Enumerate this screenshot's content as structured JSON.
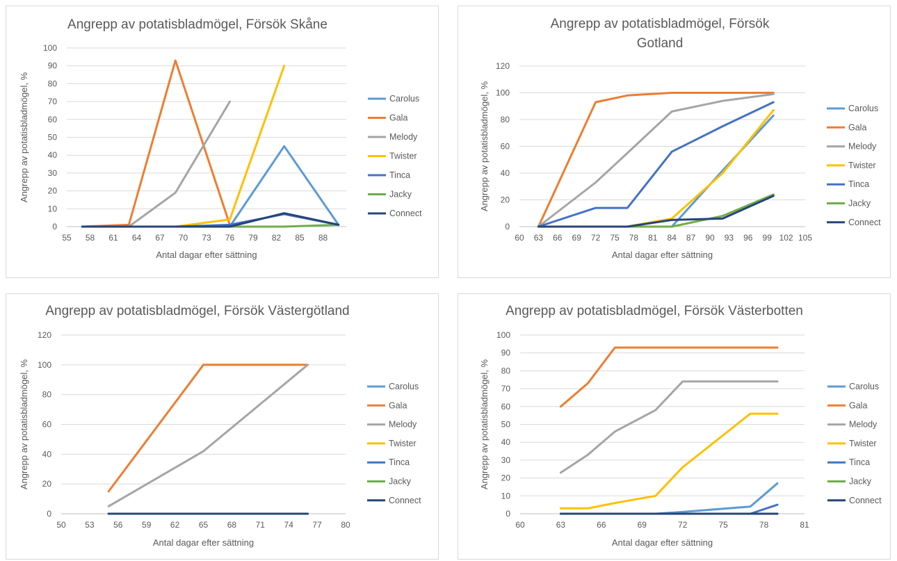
{
  "colors": {
    "Carolus": "#5b9bd5",
    "Gala": "#ed7d31",
    "Melody": "#a5a5a5",
    "Twister": "#ffc000",
    "Tinca": "#4472c4",
    "Jacky": "#70ad47",
    "Connect": "#264478"
  },
  "chart_data": [
    {
      "type": "line",
      "title_lines": [
        "Angrepp av potatisbladmögel, Försök Skåne"
      ],
      "xlabel": "Antal dagar efter sättning",
      "ylabel": "Angrepp av potatisbladmögel, %",
      "xlim": [
        55,
        91
      ],
      "xticks": [
        "55",
        "58",
        "61",
        "64",
        "67",
        "70",
        "73",
        "76",
        "79",
        "82",
        "85",
        "88"
      ],
      "ylim": [
        0,
        100
      ],
      "yticks": [
        "0",
        "10",
        "20",
        "30",
        "40",
        "50",
        "60",
        "70",
        "80",
        "90",
        "100"
      ],
      "grid": true,
      "legend": "right",
      "series": [
        {
          "name": "Carolus",
          "x": [
            57,
            63,
            69,
            76,
            83,
            90
          ],
          "y": [
            0,
            0,
            0,
            0,
            45,
            1
          ]
        },
        {
          "name": "Gala",
          "x": [
            57,
            63,
            69,
            76
          ],
          "y": [
            0,
            1,
            93,
            1
          ]
        },
        {
          "name": "Melody",
          "x": [
            57,
            63,
            69,
            76
          ],
          "y": [
            0,
            0,
            19,
            70
          ]
        },
        {
          "name": "Twister",
          "x": [
            57,
            63,
            69,
            76,
            83
          ],
          "y": [
            0,
            0,
            0,
            4,
            90
          ]
        },
        {
          "name": "Tinca",
          "x": [
            57,
            63,
            69,
            76,
            83,
            90
          ],
          "y": [
            0,
            0,
            0,
            1,
            7,
            1
          ]
        },
        {
          "name": "Jacky",
          "x": [
            57,
            63,
            69,
            76,
            83,
            90
          ],
          "y": [
            0,
            0,
            0,
            0,
            0,
            1
          ]
        },
        {
          "name": "Connect",
          "x": [
            57,
            63,
            69,
            76,
            83,
            90
          ],
          "y": [
            0,
            0,
            0,
            0,
            7.5,
            1
          ]
        }
      ]
    },
    {
      "type": "line",
      "title_lines": [
        "Angrepp av potatisbladmögel, Försök",
        "Gotland"
      ],
      "xlabel": "Antal dagar efter sättning",
      "ylabel": "Angrepp av potatisbladmögel, %",
      "xlim": [
        60,
        105
      ],
      "xticks": [
        "60",
        "63",
        "66",
        "69",
        "72",
        "75",
        "78",
        "81",
        "84",
        "87",
        "90",
        "93",
        "96",
        "99",
        "102",
        "105"
      ],
      "ylim": [
        0,
        120
      ],
      "yticks": [
        "0",
        "20",
        "40",
        "60",
        "80",
        "100",
        "120"
      ],
      "grid": true,
      "legend": "right",
      "series": [
        {
          "name": "Carolus",
          "x": [
            63,
            72,
            77,
            84,
            92,
            100
          ],
          "y": [
            0,
            0,
            0,
            0,
            42,
            83
          ]
        },
        {
          "name": "Gala",
          "x": [
            63,
            72,
            77,
            84,
            92,
            100
          ],
          "y": [
            0,
            93,
            98,
            100,
            100,
            100
          ]
        },
        {
          "name": "Melody",
          "x": [
            63,
            72,
            77,
            84,
            92,
            100
          ],
          "y": [
            0,
            33,
            55,
            86,
            94,
            99
          ]
        },
        {
          "name": "Twister",
          "x": [
            63,
            72,
            77,
            84,
            92,
            100
          ],
          "y": [
            0,
            0,
            0,
            6,
            40,
            87
          ]
        },
        {
          "name": "Tinca",
          "x": [
            63,
            72,
            77,
            84,
            92,
            100
          ],
          "y": [
            0,
            14,
            14,
            56,
            75,
            93
          ]
        },
        {
          "name": "Jacky",
          "x": [
            63,
            72,
            77,
            84,
            92,
            100
          ],
          "y": [
            0,
            0,
            0,
            0,
            8,
            24
          ]
        },
        {
          "name": "Connect",
          "x": [
            63,
            72,
            77,
            84,
            92,
            100
          ],
          "y": [
            0,
            0,
            0,
            5,
            6,
            23
          ]
        }
      ]
    },
    {
      "type": "line",
      "title_lines": [
        "Angrepp av potatisbladmögel, Försök Västergötland"
      ],
      "xlabel": "Antal dagar efter sättning",
      "ylabel": "Angrepp av potatisbladmögel, %",
      "xlim": [
        50,
        80
      ],
      "xticks": [
        "50",
        "53",
        "56",
        "59",
        "62",
        "65",
        "68",
        "71",
        "74",
        "77",
        "80"
      ],
      "ylim": [
        0,
        120
      ],
      "yticks": [
        "0",
        "20",
        "40",
        "60",
        "80",
        "100",
        "120"
      ],
      "grid": true,
      "legend": "right",
      "series": [
        {
          "name": "Carolus",
          "x": [
            55,
            65,
            76
          ],
          "y": [
            0,
            0,
            0
          ]
        },
        {
          "name": "Gala",
          "x": [
            55,
            65,
            76
          ],
          "y": [
            15,
            100,
            100
          ]
        },
        {
          "name": "Melody",
          "x": [
            55,
            65,
            76
          ],
          "y": [
            5,
            42,
            100
          ]
        },
        {
          "name": "Twister",
          "x": [
            55,
            65,
            76
          ],
          "y": [
            0,
            0,
            0
          ]
        },
        {
          "name": "Tinca",
          "x": [
            55,
            65,
            76
          ],
          "y": [
            0,
            0,
            0
          ]
        },
        {
          "name": "Jacky",
          "x": [
            55,
            65,
            76
          ],
          "y": [
            0,
            0,
            0
          ]
        },
        {
          "name": "Connect",
          "x": [
            55,
            65,
            76
          ],
          "y": [
            0,
            0,
            0
          ]
        }
      ]
    },
    {
      "type": "line",
      "title_lines": [
        "Angrepp av potatisbladmögel, Försök Västerbotten"
      ],
      "xlabel": "Antal dagar efter sättning",
      "ylabel": "Angrepp av potatisbladmögel, %",
      "xlim": [
        60,
        81
      ],
      "xticks": [
        "60",
        "63",
        "66",
        "69",
        "72",
        "75",
        "78",
        "81"
      ],
      "ylim": [
        0,
        100
      ],
      "yticks": [
        "0",
        "10",
        "20",
        "30",
        "40",
        "50",
        "60",
        "70",
        "80",
        "90",
        "100"
      ],
      "grid": true,
      "legend": "right",
      "series": [
        {
          "name": "Carolus",
          "x": [
            63,
            65,
            67,
            70,
            72,
            77,
            79
          ],
          "y": [
            0,
            0,
            0,
            0,
            1,
            4,
            17
          ]
        },
        {
          "name": "Gala",
          "x": [
            63,
            65,
            67,
            70,
            72,
            77,
            79
          ],
          "y": [
            60,
            73,
            93,
            93,
            93,
            93,
            93
          ]
        },
        {
          "name": "Melody",
          "x": [
            63,
            65,
            67,
            70,
            72,
            77,
            79
          ],
          "y": [
            23,
            33,
            46,
            58,
            74,
            74,
            74
          ]
        },
        {
          "name": "Twister",
          "x": [
            63,
            65,
            67,
            70,
            72,
            77,
            79
          ],
          "y": [
            3,
            3,
            6,
            10,
            26,
            56,
            56
          ]
        },
        {
          "name": "Tinca",
          "x": [
            63,
            65,
            67,
            70,
            72,
            77,
            79
          ],
          "y": [
            0,
            0,
            0,
            0,
            0,
            0,
            5
          ]
        },
        {
          "name": "Jacky",
          "x": [
            63,
            65,
            67,
            70,
            72,
            77,
            79
          ],
          "y": [
            0,
            0,
            0,
            0,
            0,
            0,
            0
          ]
        },
        {
          "name": "Connect",
          "x": [
            63,
            65,
            67,
            70,
            72,
            77,
            79
          ],
          "y": [
            0,
            0,
            0,
            0,
            0,
            0,
            0
          ]
        }
      ]
    }
  ]
}
